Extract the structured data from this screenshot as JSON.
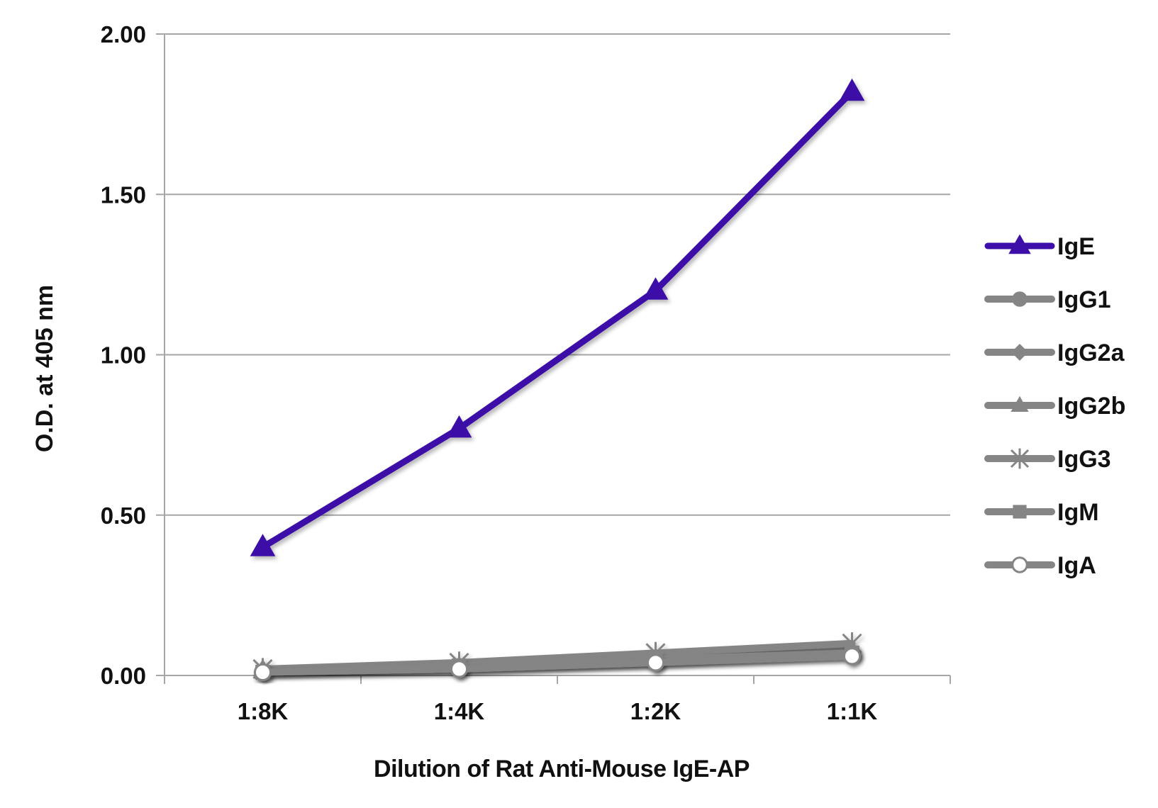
{
  "chart_data": {
    "type": "line",
    "title": "",
    "xlabel": "Dilution of Rat Anti-Mouse IgE-AP",
    "ylabel": "O.D. at 405 nm",
    "categories": [
      "1:8K",
      "1:4K",
      "1:2K",
      "1:1K"
    ],
    "yticks": [
      "0.00",
      "0.50",
      "1.00",
      "1.50",
      "2.00"
    ],
    "ylim": [
      0,
      2
    ],
    "grid": "horizontal",
    "legend_position": "right",
    "series": [
      {
        "name": "IgE",
        "values": [
          0.4,
          0.77,
          1.2,
          1.82
        ],
        "color": "#3d0fa8",
        "marker": "triangle"
      },
      {
        "name": "IgG1",
        "values": [
          0.01,
          0.02,
          0.04,
          0.07
        ],
        "color": "#858585",
        "marker": "circle"
      },
      {
        "name": "IgG2a",
        "values": [
          0.01,
          0.02,
          0.04,
          0.06
        ],
        "color": "#858585",
        "marker": "diamond"
      },
      {
        "name": "IgG2b",
        "values": [
          0.02,
          0.03,
          0.05,
          0.08
        ],
        "color": "#858585",
        "marker": "triangle"
      },
      {
        "name": "IgG3",
        "values": [
          0.02,
          0.04,
          0.07,
          0.1
        ],
        "color": "#858585",
        "marker": "star"
      },
      {
        "name": "IgM",
        "values": [
          0.01,
          0.03,
          0.05,
          0.07
        ],
        "color": "#858585",
        "marker": "square"
      },
      {
        "name": "IgA",
        "values": [
          0.01,
          0.02,
          0.04,
          0.06
        ],
        "color": "#858585",
        "marker": "open-circle"
      }
    ]
  }
}
